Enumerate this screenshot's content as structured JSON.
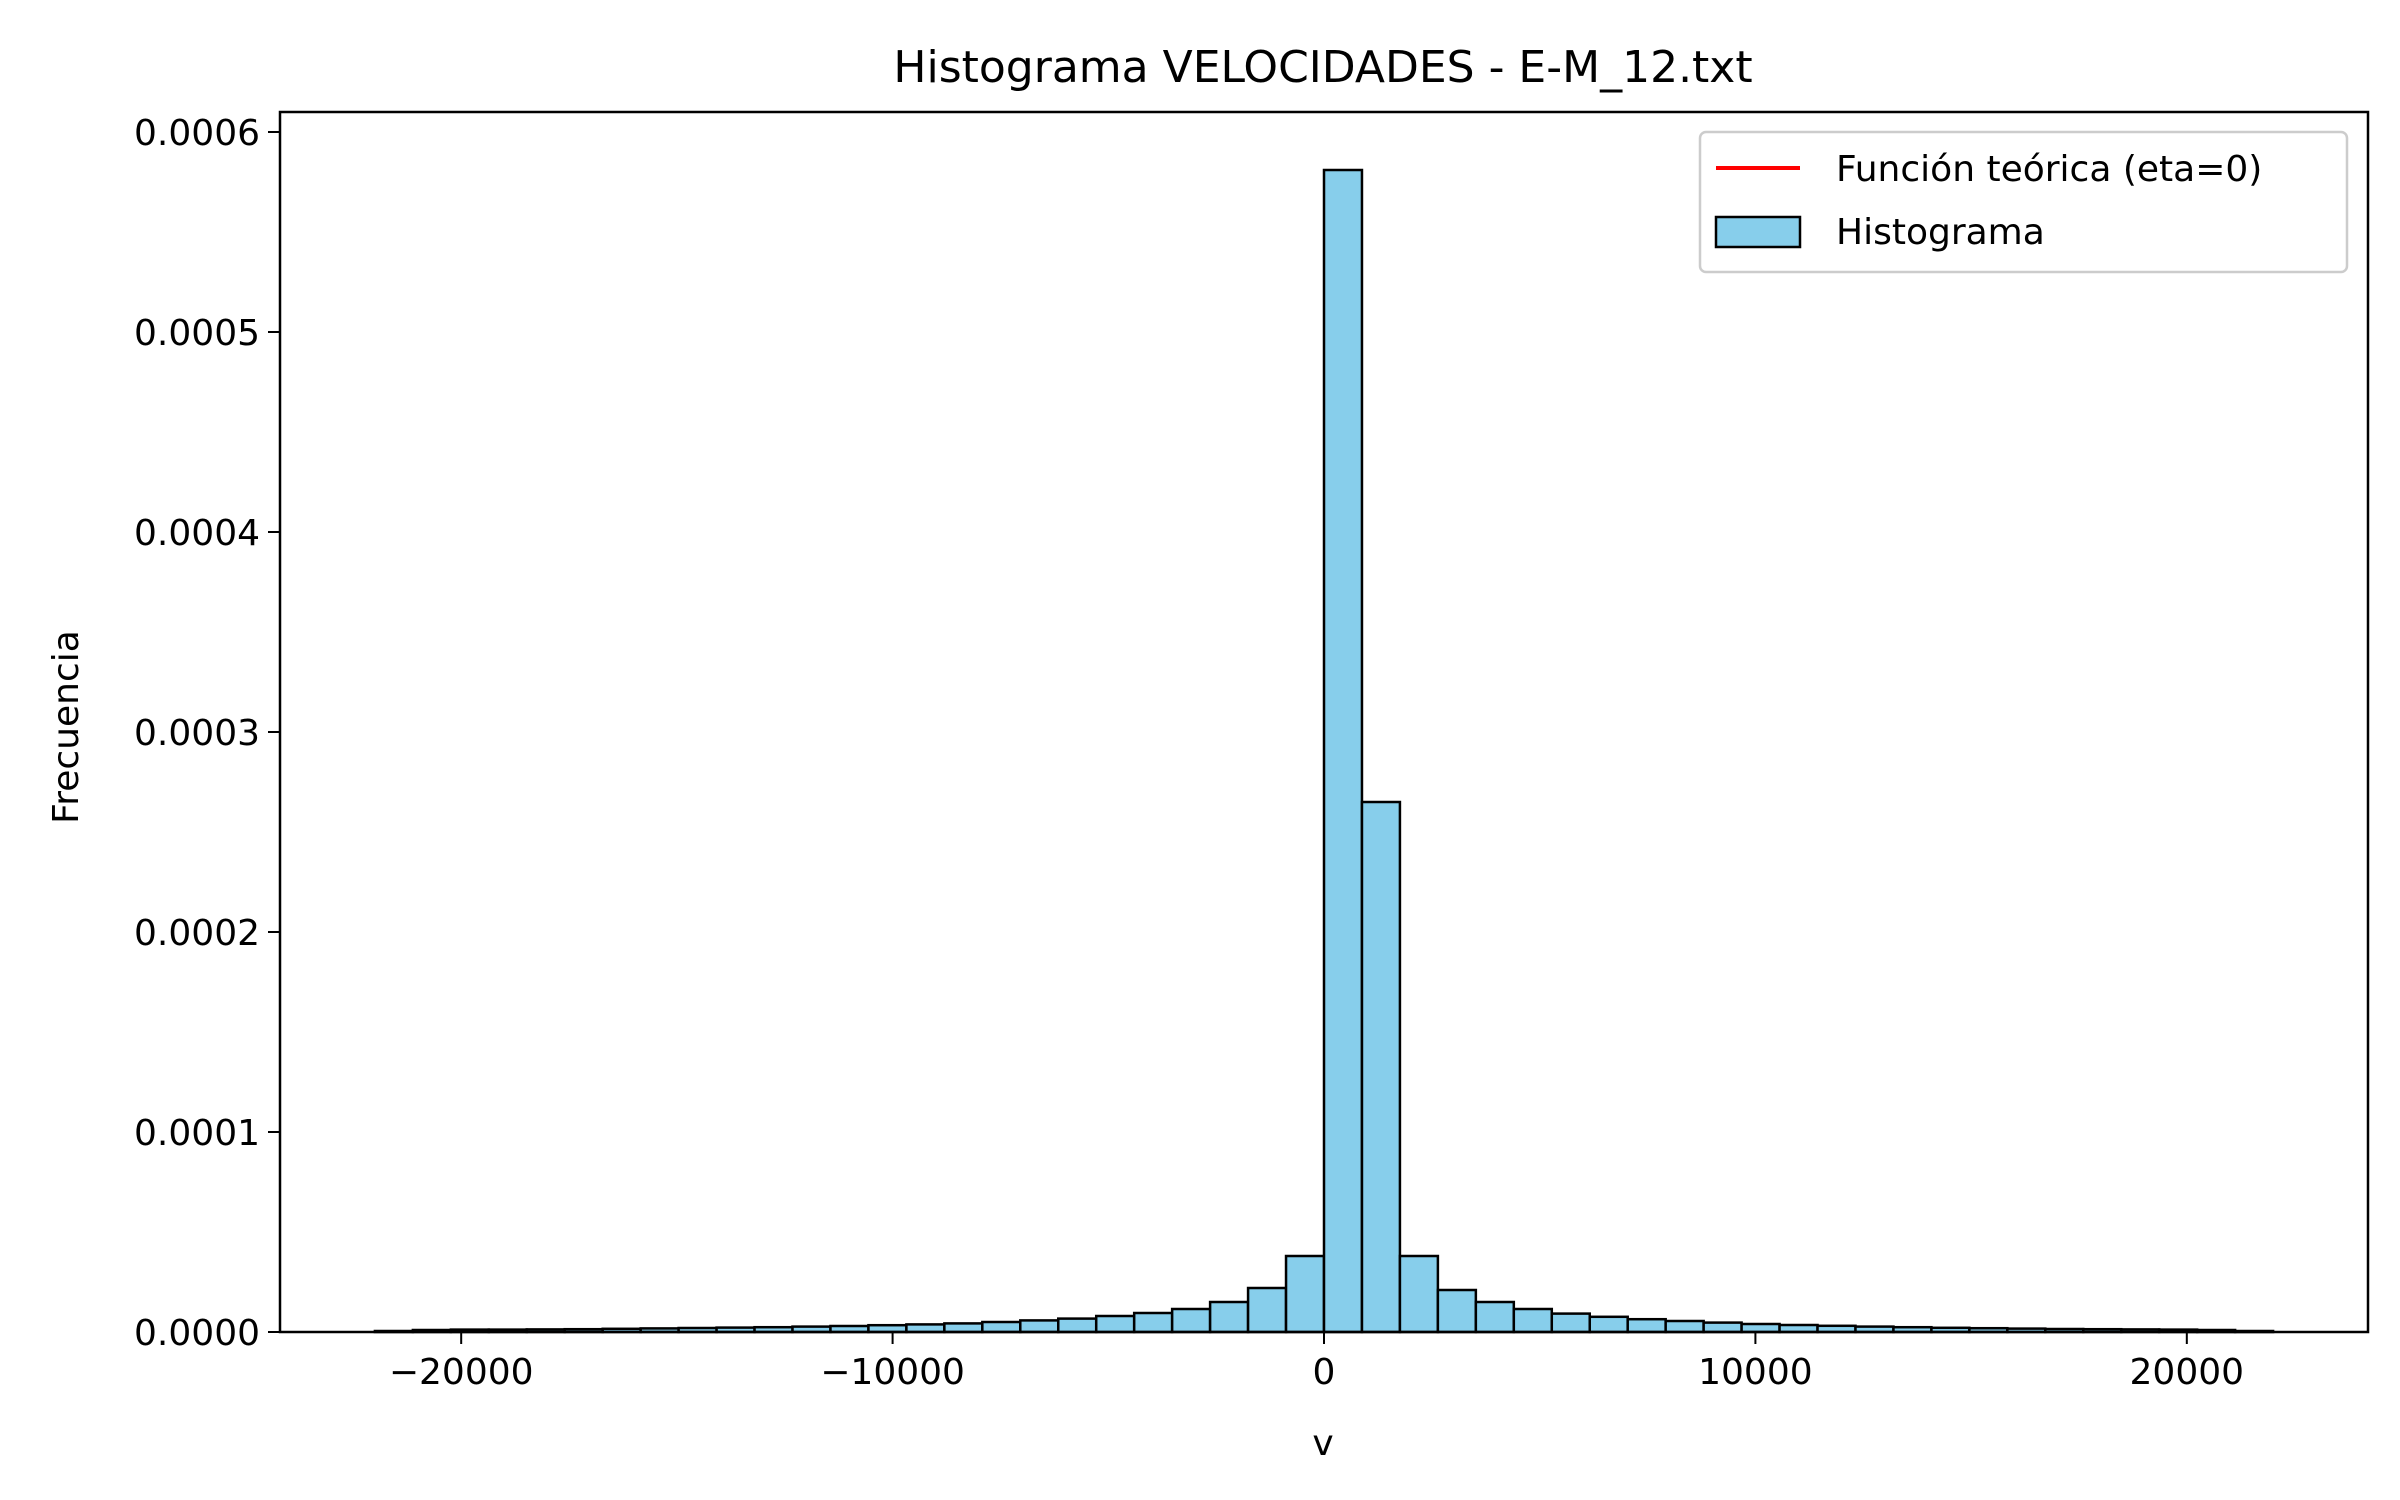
{
  "chart_data": {
    "type": "bar",
    "title": "Histograma VELOCIDADES - E-M_12.txt",
    "xlabel": "v",
    "ylabel": "Frecuencia",
    "xlim": [
      -24200,
      24200
    ],
    "ylim": [
      0,
      0.00061
    ],
    "xticks": [
      -20000,
      -10000,
      0,
      10000,
      20000
    ],
    "xtick_labels": [
      "−20000",
      "−10000",
      "0",
      "10000",
      "20000"
    ],
    "yticks": [
      0,
      0.0001,
      0.0002,
      0.0003,
      0.0004,
      0.0005,
      0.0006
    ],
    "ytick_labels": [
      "0.0000",
      "0.0001",
      "0.0002",
      "0.0003",
      "0.0004",
      "0.0005",
      "0.0006"
    ],
    "grid": false,
    "legend_position": "top-right",
    "legend": [
      {
        "label": "Función teórica (eta=0)",
        "kind": "line",
        "color": "#ff0000"
      },
      {
        "label": "Histograma",
        "kind": "patch",
        "color": "#87ceeb"
      }
    ],
    "bin_edges_range": [
      -22000,
      22000
    ],
    "bin_count": 50,
    "series": [
      {
        "name": "Histograma",
        "color": "#87ceeb",
        "edgecolor": "#000000",
        "values": [
          5e-07,
          1e-06,
          1.2e-06,
          1.2e-06,
          1.3e-06,
          1.4e-06,
          1.6e-06,
          1.8e-06,
          2e-06,
          2.2e-06,
          2.4e-06,
          2.7e-06,
          3e-06,
          3.4e-06,
          3.8e-06,
          4.3e-06,
          5e-06,
          5.8e-06,
          6.7e-06,
          8e-06,
          9.5e-06,
          1.15e-05,
          1.5e-05,
          2.2e-05,
          3.8e-05,
          0.000581,
          0.000265,
          3.8e-05,
          2.1e-05,
          1.5e-05,
          1.15e-05,
          9.2e-06,
          7.6e-06,
          6.4e-06,
          5.5e-06,
          4.7e-06,
          4e-06,
          3.5e-06,
          3.1e-06,
          2.7e-06,
          2.4e-06,
          2.1e-06,
          1.9e-06,
          1.7e-06,
          1.5e-06,
          1.4e-06,
          1.3e-06,
          1.2e-06,
          1e-06,
          5e-07
        ]
      }
    ]
  }
}
